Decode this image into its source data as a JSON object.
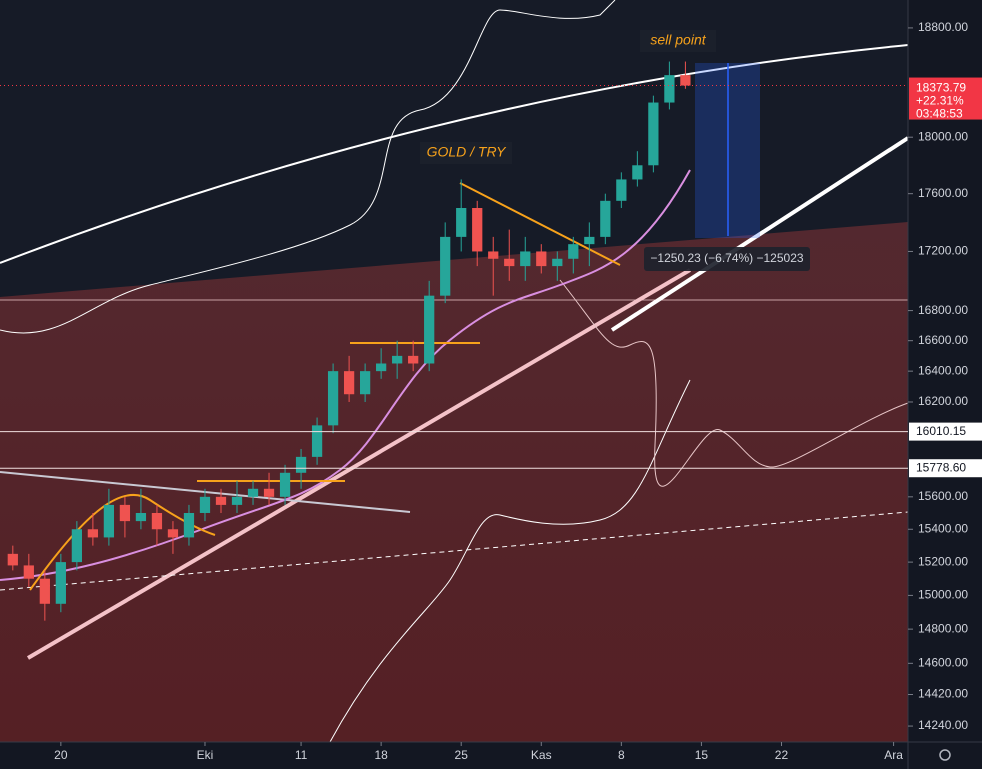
{
  "chart_data": {
    "type": "candlestick",
    "log_scale": true,
    "ylim": [
      14150,
      19010
    ],
    "yticks": [
      {
        "value": 18800,
        "label": "18800.00"
      },
      {
        "value": 18000,
        "label": "18000.00"
      },
      {
        "value": 17600,
        "label": "17600.00"
      },
      {
        "value": 17200,
        "label": "17200.00"
      },
      {
        "value": 16800,
        "label": "16800.00"
      },
      {
        "value": 16600,
        "label": "16600.00"
      },
      {
        "value": 16400,
        "label": "16400.00"
      },
      {
        "value": 16200,
        "label": "16200.00"
      },
      {
        "value": 15600,
        "label": "15600.00"
      },
      {
        "value": 15400,
        "label": "15400.00"
      },
      {
        "value": 15200,
        "label": "15200.00"
      },
      {
        "value": 15000,
        "label": "15000.00"
      },
      {
        "value": 14800,
        "label": "14800.00"
      },
      {
        "value": 14600,
        "label": "14600.00"
      },
      {
        "value": 14420,
        "label": "14420.00"
      },
      {
        "value": 14240,
        "label": "14240.00"
      }
    ],
    "xlim": [
      -3.8,
      52.9
    ],
    "xticks": [
      {
        "value": 0,
        "label": "20"
      },
      {
        "value": 9,
        "label": "Eki"
      },
      {
        "value": 15,
        "label": "11"
      },
      {
        "value": 20,
        "label": "18"
      },
      {
        "value": 25,
        "label": "25"
      },
      {
        "value": 30,
        "label": "Kas"
      },
      {
        "value": 35,
        "label": "8"
      },
      {
        "value": 40,
        "label": "15"
      },
      {
        "value": 45,
        "label": "22"
      },
      {
        "value": 52,
        "label": "Ara"
      }
    ],
    "up_color": "#26a69a",
    "down_color": "#ef5350",
    "x": [
      -3,
      -2,
      -1,
      0,
      1,
      2,
      3,
      4,
      5,
      6,
      7,
      8,
      9,
      10,
      11,
      12,
      13,
      14,
      15,
      16,
      17,
      18,
      19,
      20,
      21,
      22,
      23,
      24,
      25,
      26,
      27,
      28,
      29,
      30,
      31,
      32,
      33,
      34,
      35,
      36,
      37,
      38,
      39
    ],
    "open": [
      15250,
      15180,
      15100,
      14950,
      15200,
      15400,
      15350,
      15550,
      15450,
      15500,
      15400,
      15350,
      15500,
      15600,
      15550,
      15600,
      15650,
      15600,
      15750,
      15850,
      16050,
      16400,
      16250,
      16400,
      16450,
      16500,
      16450,
      16900,
      17300,
      17500,
      17200,
      17150,
      17100,
      17200,
      17100,
      17150,
      17250,
      17300,
      17550,
      17700,
      17800,
      18250,
      18450
    ],
    "high": [
      15300,
      15250,
      15150,
      15250,
      15450,
      15500,
      15650,
      15600,
      15650,
      15550,
      15450,
      15550,
      15650,
      15650,
      15700,
      15700,
      15750,
      15800,
      15900,
      16100,
      16450,
      16500,
      16450,
      16550,
      16600,
      16600,
      17000,
      17400,
      17700,
      17550,
      17300,
      17350,
      17300,
      17250,
      17200,
      17300,
      17400,
      17600,
      17750,
      17900,
      18300,
      18550,
      18550
    ],
    "low": [
      15150,
      15050,
      14850,
      14900,
      15150,
      15300,
      15300,
      15350,
      15400,
      15300,
      15250,
      15300,
      15450,
      15500,
      15500,
      15550,
      15550,
      15550,
      15650,
      15800,
      16000,
      16200,
      16200,
      16350,
      16350,
      16400,
      16400,
      16850,
      17200,
      17100,
      16900,
      17000,
      17000,
      17050,
      17000,
      17050,
      17100,
      17250,
      17500,
      17650,
      17750,
      18200,
      18350
    ],
    "close": [
      15180,
      15100,
      14950,
      15200,
      15400,
      15350,
      15550,
      15450,
      15500,
      15400,
      15350,
      15500,
      15600,
      15550,
      15600,
      15650,
      15600,
      15750,
      15850,
      16050,
      16400,
      16250,
      16400,
      16450,
      16500,
      16450,
      16900,
      17300,
      17500,
      17200,
      17150,
      17100,
      17200,
      17100,
      17150,
      17250,
      17300,
      17550,
      17700,
      17800,
      18250,
      18450,
      18373.79
    ],
    "current_price": {
      "value": 18373.79,
      "label": "18373.79",
      "change": "+22.31%",
      "countdown": "03:48:53"
    },
    "horizontal_lines": [
      {
        "value": 16010.15,
        "label": "16010.15"
      },
      {
        "value": 15778.6,
        "label": "15778.60"
      }
    ],
    "annotations": {
      "sell": "sell point",
      "pair": "GOLD / TRY",
      "measure": "−1250.23 (−6.74%) −125023"
    }
  }
}
